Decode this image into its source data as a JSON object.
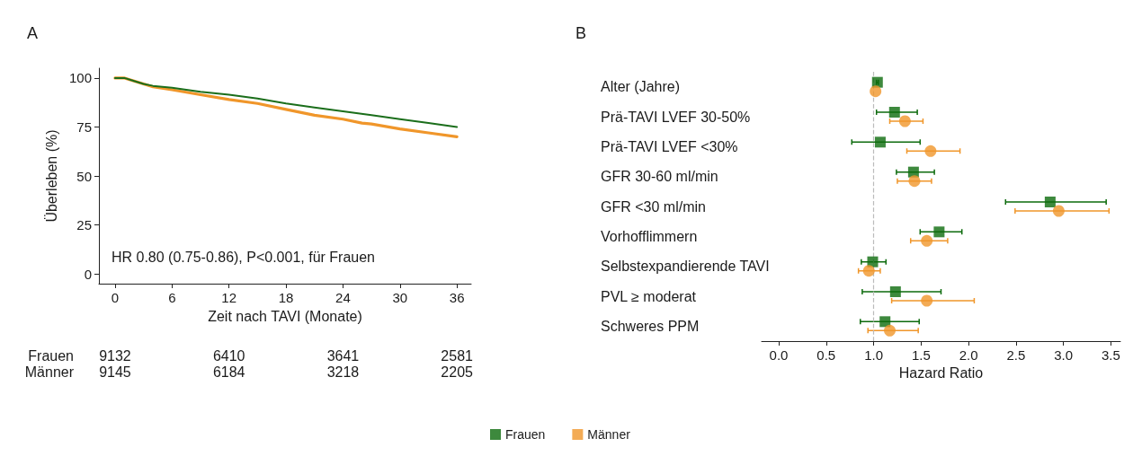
{
  "chart_data": [
    {
      "type": "line",
      "title": "A",
      "xlabel": "Zeit nach TAVI (Monate)",
      "ylabel": "Überleben (%)",
      "xlim": [
        -1.7,
        37.5
      ],
      "xticks": [
        0,
        6,
        12,
        18,
        24,
        30,
        36
      ],
      "ylim": [
        -5,
        105
      ],
      "yticks": [
        0,
        25,
        50,
        75,
        100
      ],
      "annotations": [
        "HR 0.80 (0.75-0.86), P<0.001, für Frauen",
        "Frauen",
        "9132",
        "6410",
        "3641",
        "2581",
        "Männer",
        "9145",
        "6184",
        "3218",
        "2205"
      ],
      "series": [
        {
          "color": "#1b6e1b",
          "x": [
            0,
            1,
            2,
            3,
            4,
            6,
            9,
            12,
            15,
            18,
            21,
            24,
            27,
            30,
            33,
            36
          ],
          "values": [
            100,
            100,
            98.5,
            97,
            96,
            95,
            93,
            91.5,
            89.5,
            87,
            85,
            83,
            81,
            79,
            77,
            75
          ]
        },
        {
          "color": "#f0962a",
          "x": [
            0,
            1,
            2,
            3,
            4,
            6,
            9,
            12,
            15,
            18,
            21,
            24,
            26,
            27,
            30,
            33,
            36
          ],
          "values": [
            100,
            100,
            98.5,
            97,
            95.5,
            94,
            91.5,
            89,
            87,
            84,
            81,
            79,
            77,
            76.5,
            74,
            72,
            70
          ]
        }
      ]
    },
    {
      "type": "scatter",
      "title": "B",
      "orientation": "horizontal",
      "xlabel": "Hazard Ratio",
      "legend": "bottom",
      "categories": [
        "Alter (Jahre)",
        "Prä-TAVI LVEF 30-50%",
        "Prä-TAVI LVEF <30%",
        "GFR 30-60 ml/min",
        "GFR <30 ml/min",
        "Vorhofflimmern",
        "Selbstexpandierende TAVI",
        "PVL ≥ moderat",
        "Schweres PPM"
      ],
      "xlim": [
        -0.18,
        3.6
      ],
      "xticks": [
        {
          "value": 0,
          "label": "0.0"
        },
        {
          "value": 0.5,
          "label": "0.5"
        },
        {
          "value": 1,
          "label": "1.0"
        },
        {
          "value": 1.5,
          "label": "1.5"
        },
        {
          "value": 2,
          "label": "2.0"
        },
        {
          "value": 2.5,
          "label": "2.5"
        },
        {
          "value": 3,
          "label": "3.0"
        },
        {
          "value": 3.5,
          "label": "3.5"
        }
      ],
      "ref_lines": [
        {
          "axis": "x",
          "value": 1,
          "color": "#bbbbbb",
          "line_style": "dashed"
        }
      ],
      "series": [
        {
          "name": "Frauen",
          "color": "#0d6b0d",
          "marker": "square",
          "values": [
            1.04,
            1.22,
            1.07,
            1.42,
            2.86,
            1.69,
            0.99,
            1.23,
            1.12
          ],
          "errors": [
            [
              1.03,
              1.05
            ],
            [
              1.03,
              1.46
            ],
            [
              0.77,
              1.49
            ],
            [
              1.24,
              1.64
            ],
            [
              2.39,
              3.45
            ],
            [
              1.49,
              1.93
            ],
            [
              0.87,
              1.13
            ],
            [
              0.88,
              1.71
            ],
            [
              0.86,
              1.48
            ]
          ]
        },
        {
          "name": "Männer",
          "color": "#f0962a",
          "marker": "circle",
          "values": [
            1.02,
            1.33,
            1.6,
            1.43,
            2.95,
            1.56,
            0.95,
            1.56,
            1.17
          ],
          "errors": [
            null,
            [
              1.17,
              1.52
            ],
            [
              1.35,
              1.91
            ],
            [
              1.25,
              1.61
            ],
            [
              2.49,
              3.48
            ],
            [
              1.39,
              1.78
            ],
            [
              0.84,
              1.07
            ],
            [
              1.19,
              2.06
            ],
            [
              0.94,
              1.47
            ]
          ]
        }
      ]
    }
  ]
}
